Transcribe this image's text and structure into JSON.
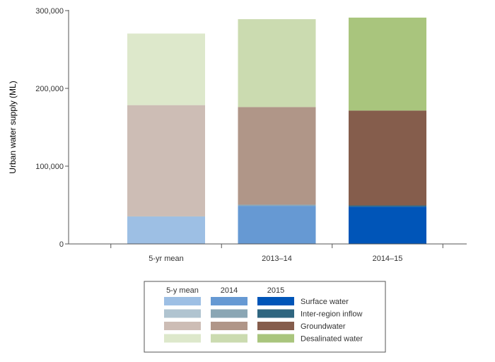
{
  "chart_data": {
    "type": "bar",
    "stacked": true,
    "title": "",
    "ylabel": "Urban water supply (ML)",
    "xlabel": "",
    "ylim": [
      0,
      300000
    ],
    "yticks": [
      0,
      100000,
      200000,
      300000
    ],
    "ytick_labels": [
      "0",
      "100,000",
      "200,000",
      "300,000"
    ],
    "categories": [
      "5-yr mean",
      "2013–14",
      "2014–15"
    ],
    "grid": false,
    "series": [
      {
        "name": "Surface water",
        "values": [
          35000,
          49000,
          48000
        ],
        "colors": [
          "#9dbfe4",
          "#6699d3",
          "#0055b8"
        ]
      },
      {
        "name": "Inter-region inflow",
        "values": [
          500,
          1500,
          1500
        ],
        "colors": [
          "#b0c4d0",
          "#8aa6b4",
          "#2f6680"
        ]
      },
      {
        "name": "Groundwater",
        "values": [
          143000,
          125500,
          122000
        ],
        "colors": [
          "#cdbdb5",
          "#b09688",
          "#855d4c"
        ]
      },
      {
        "name": "Desalinated water",
        "values": [
          92000,
          113000,
          119500
        ],
        "colors": [
          "#dde8cb",
          "#cbdbb0",
          "#a9c57d"
        ]
      }
    ],
    "legend": {
      "position": "bottom",
      "column_headers": [
        "5-y mean",
        "2014",
        "2015"
      ]
    }
  }
}
